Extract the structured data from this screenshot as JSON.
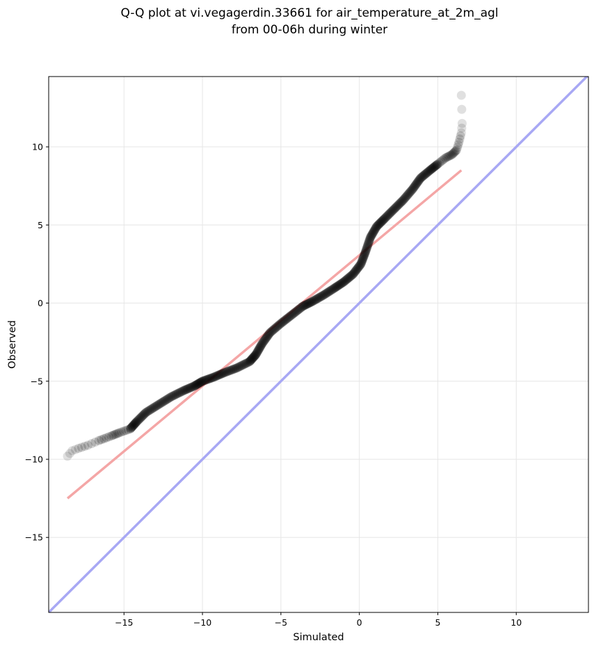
{
  "chart_data": {
    "type": "scatter",
    "title_line1": "Q-Q plot at vi.vegagerdin.33661 for air_temperature_at_2m_agl",
    "title_line2": "from 00-06h during winter",
    "xlabel": "Simulated",
    "ylabel": "Observed",
    "xlim": [
      -19.8,
      14.6
    ],
    "ylim": [
      -19.8,
      14.5
    ],
    "x_ticks": [
      -15,
      -10,
      -5,
      0,
      5,
      10
    ],
    "y_ticks": [
      -15,
      -10,
      -5,
      0,
      5,
      10
    ],
    "x_tick_labels": [
      "−15",
      "−10",
      "−5",
      "0",
      "5",
      "10"
    ],
    "y_tick_labels": [
      "−15",
      "−10",
      "−5",
      "0",
      "5",
      "10"
    ],
    "grid": true,
    "quantile_curve": [
      [
        -18.6,
        -9.8
      ],
      [
        -18.3,
        -9.45
      ],
      [
        -17.9,
        -9.3
      ],
      [
        -17.3,
        -9.1
      ],
      [
        -16.6,
        -8.8
      ],
      [
        -15.8,
        -8.5
      ],
      [
        -15.3,
        -8.3
      ],
      [
        -14.6,
        -8.05
      ],
      [
        -14.2,
        -7.6
      ],
      [
        -13.6,
        -7.0
      ],
      [
        -12.8,
        -6.5
      ],
      [
        -12.0,
        -6.0
      ],
      [
        -11.2,
        -5.6
      ],
      [
        -10.5,
        -5.3
      ],
      [
        -10.0,
        -5.0
      ],
      [
        -9.3,
        -4.75
      ],
      [
        -8.6,
        -4.45
      ],
      [
        -7.8,
        -4.15
      ],
      [
        -7.0,
        -3.75
      ],
      [
        -6.6,
        -3.3
      ],
      [
        -6.2,
        -2.6
      ],
      [
        -5.7,
        -1.9
      ],
      [
        -5.0,
        -1.3
      ],
      [
        -4.3,
        -0.75
      ],
      [
        -3.6,
        -0.2
      ],
      [
        -3.0,
        0.1
      ],
      [
        -2.3,
        0.5
      ],
      [
        -1.6,
        0.95
      ],
      [
        -1.0,
        1.35
      ],
      [
        -0.4,
        1.85
      ],
      [
        0.1,
        2.5
      ],
      [
        0.4,
        3.3
      ],
      [
        0.7,
        4.2
      ],
      [
        1.1,
        4.9
      ],
      [
        1.6,
        5.4
      ],
      [
        2.2,
        6.0
      ],
      [
        2.8,
        6.6
      ],
      [
        3.4,
        7.3
      ],
      [
        3.9,
        8.0
      ],
      [
        4.5,
        8.5
      ],
      [
        5.0,
        8.9
      ],
      [
        5.5,
        9.3
      ],
      [
        5.9,
        9.5
      ],
      [
        6.2,
        9.8
      ],
      [
        6.35,
        10.3
      ],
      [
        6.5,
        10.9
      ],
      [
        6.55,
        11.5
      ],
      [
        6.5,
        13.3
      ]
    ],
    "fit_line": {
      "x": [
        -18.6,
        6.5
      ],
      "y": [
        -12.5,
        8.5
      ],
      "color": "#f4a6a6"
    },
    "identity_line": {
      "x": [
        -19.8,
        14.6
      ],
      "y": [
        -19.8,
        14.6
      ],
      "color": "#a8a8f4"
    },
    "point_color": "#000000"
  }
}
